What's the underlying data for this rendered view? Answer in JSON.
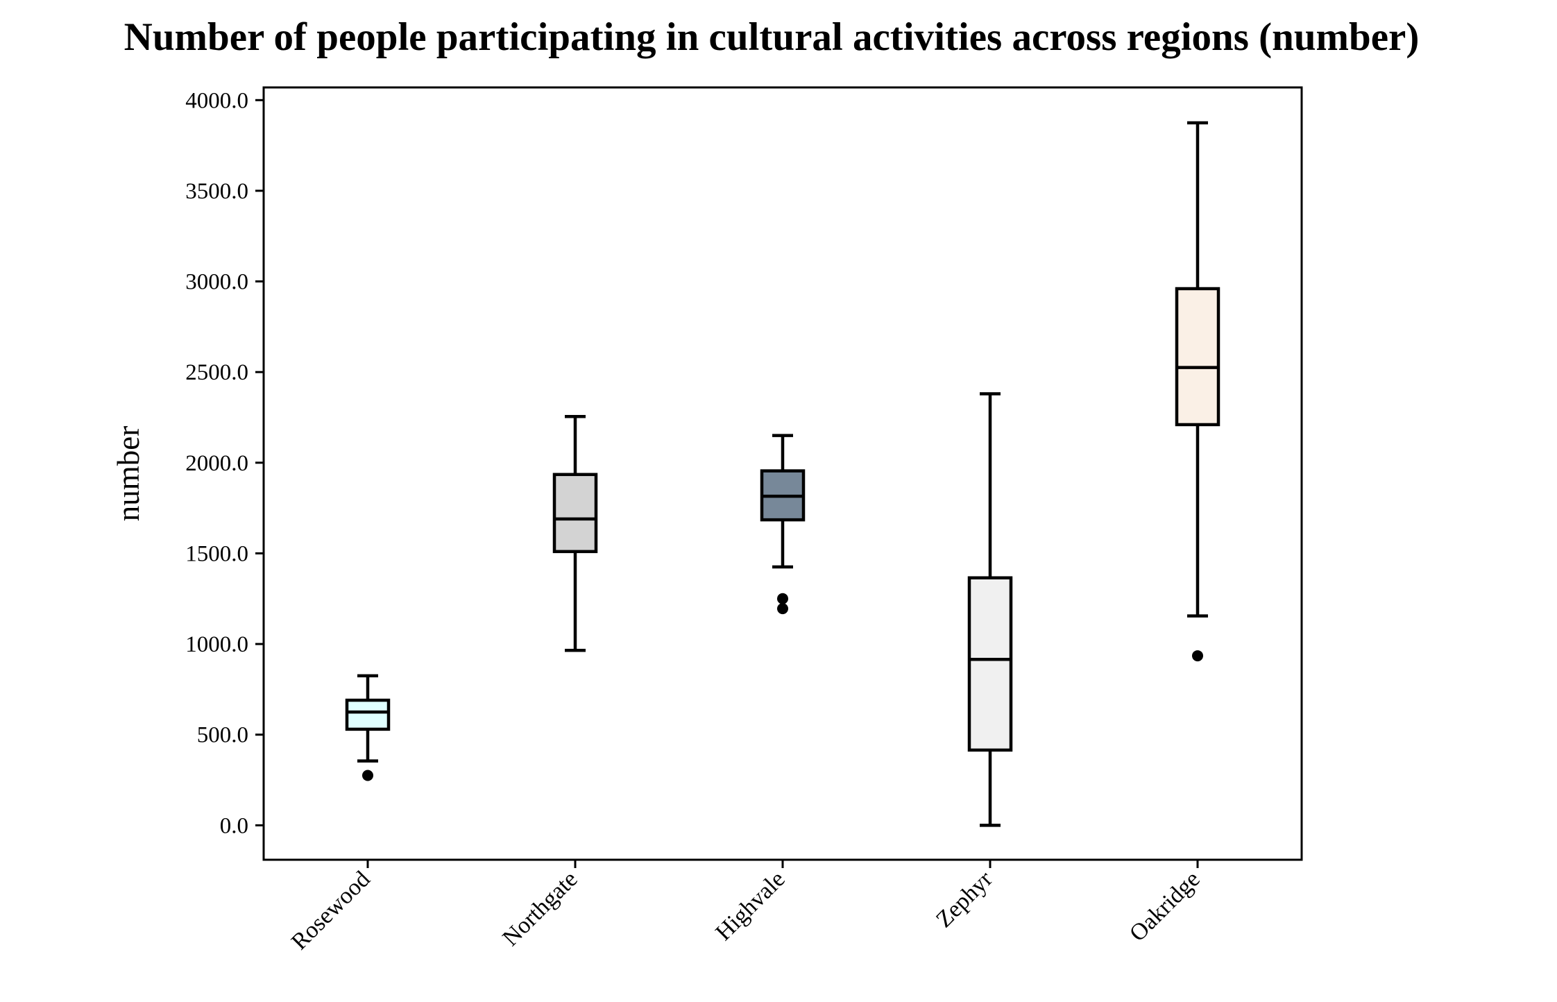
{
  "chart_data": {
    "type": "box",
    "title": "Number of people participating in cultural activities across regions (number)",
    "xlabel": "",
    "ylabel": "number",
    "ylim": [
      -190,
      4070
    ],
    "yticks": [
      0,
      500,
      1000,
      1500,
      2000,
      2500,
      3000,
      3500,
      4000
    ],
    "ytick_labels": [
      "0.0",
      "500.0",
      "1000.0",
      "1500.0",
      "2000.0",
      "2500.0",
      "3000.0",
      "3500.0",
      "4000.0"
    ],
    "grid": false,
    "legend": "none",
    "categories": [
      "Rosewood",
      "Northgate",
      "Highvale",
      "Zephyr",
      "Oakridge"
    ],
    "boxes": [
      {
        "category": "Rosewood",
        "whisker_low": 355,
        "q1": 530,
        "median": 625,
        "q3": 690,
        "whisker_high": 825,
        "outliers": [
          275
        ],
        "color": "#e0ffff"
      },
      {
        "category": "Northgate",
        "whisker_low": 965,
        "q1": 1510,
        "median": 1690,
        "q3": 1935,
        "whisker_high": 2255,
        "outliers": [],
        "color": "#d3d3d3"
      },
      {
        "category": "Highvale",
        "whisker_low": 1425,
        "q1": 1685,
        "median": 1815,
        "q3": 1955,
        "whisker_high": 2150,
        "outliers": [
          1250,
          1195
        ],
        "color": "#778899"
      },
      {
        "category": "Zephyr",
        "whisker_low": 0,
        "q1": 415,
        "median": 915,
        "q3": 1365,
        "whisker_high": 2380,
        "outliers": [],
        "color": "#f0f0f0"
      },
      {
        "category": "Oakridge",
        "whisker_low": 1155,
        "q1": 2210,
        "median": 2525,
        "q3": 2960,
        "whisker_high": 3875,
        "outliers": [
          935
        ],
        "color": "#faf0e6"
      }
    ]
  }
}
